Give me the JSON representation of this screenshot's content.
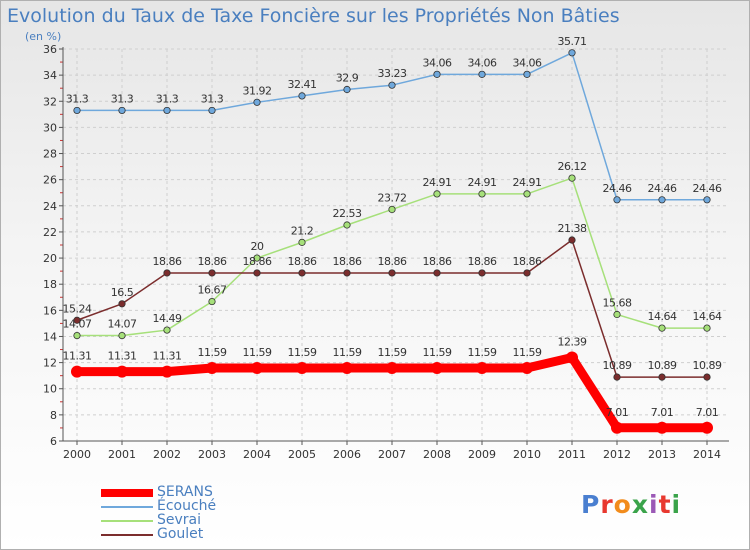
{
  "header": {
    "title": "Evolution du Taux de Taxe Foncière sur les Propriétés Non Bâties",
    "unit": "(en %)"
  },
  "chart_data": {
    "type": "line",
    "title": "Evolution du Taux de Taxe Foncière sur les Propriétés Non Bâties",
    "ylabel": "(en %)",
    "xlabel": "",
    "ylim": [
      6,
      36
    ],
    "yticks": [
      6,
      8,
      10,
      12,
      14,
      16,
      18,
      20,
      22,
      24,
      26,
      28,
      30,
      32,
      34,
      36
    ],
    "categories": [
      "2000",
      "2001",
      "2002",
      "2003",
      "2004",
      "2005",
      "2006",
      "2007",
      "2008",
      "2009",
      "2010",
      "2011",
      "2012",
      "2013",
      "2014"
    ],
    "series": [
      {
        "name": "SERANS",
        "color": "#ff0000",
        "labels": [
          "11.31",
          "11.31",
          "11.31",
          "11.59",
          "11.59",
          "11.59",
          "11.59",
          "11.59",
          "11.59",
          "11.59",
          "11.59",
          "12.39",
          "7.01",
          "7.01",
          "7.01"
        ],
        "values": [
          11.31,
          11.31,
          11.31,
          11.59,
          11.59,
          11.59,
          11.59,
          11.59,
          11.59,
          11.59,
          11.59,
          12.39,
          7.01,
          7.01,
          7.01
        ]
      },
      {
        "name": "Écouché",
        "color": "#6fa8dc",
        "labels": [
          "31.3",
          "31.3",
          "31.3",
          "31.3",
          "31.92",
          "32.41",
          "32.9",
          "33.23",
          "34.06",
          "34.06",
          "34.06",
          "35.71",
          "24.46",
          "24.46",
          "24.46"
        ],
        "values": [
          31.3,
          31.3,
          31.3,
          31.3,
          31.92,
          32.41,
          32.9,
          33.23,
          34.06,
          34.06,
          34.06,
          35.71,
          24.46,
          24.46,
          24.46
        ]
      },
      {
        "name": "Sevrai",
        "color": "#a6e07a",
        "labels": [
          "14.07",
          "14.07",
          "14.49",
          "16.67",
          "20",
          "21.2",
          "22.53",
          "23.72",
          "24.91",
          "24.91",
          "24.91",
          "26.12",
          "15.68",
          "14.64",
          "14.64"
        ],
        "values": [
          14.07,
          14.07,
          14.49,
          16.67,
          20,
          21.2,
          22.53,
          23.72,
          24.91,
          24.91,
          24.91,
          26.12,
          15.68,
          14.64,
          14.64
        ]
      },
      {
        "name": "Goulet",
        "color": "#7b2d2d",
        "labels": [
          "15.24",
          "16.5",
          "18.86",
          "18.86",
          "18.86",
          "18.86",
          "18.86",
          "18.86",
          "18.86",
          "18.86",
          "18.86",
          "21.38",
          "10.89",
          "10.89",
          "10.89"
        ],
        "values": [
          15.24,
          16.5,
          18.86,
          18.86,
          18.86,
          18.86,
          18.86,
          18.86,
          18.86,
          18.86,
          18.86,
          21.38,
          10.89,
          10.89,
          10.89
        ]
      }
    ],
    "legend_position": "bottom-left"
  },
  "logo": {
    "text": "Proxiti"
  }
}
